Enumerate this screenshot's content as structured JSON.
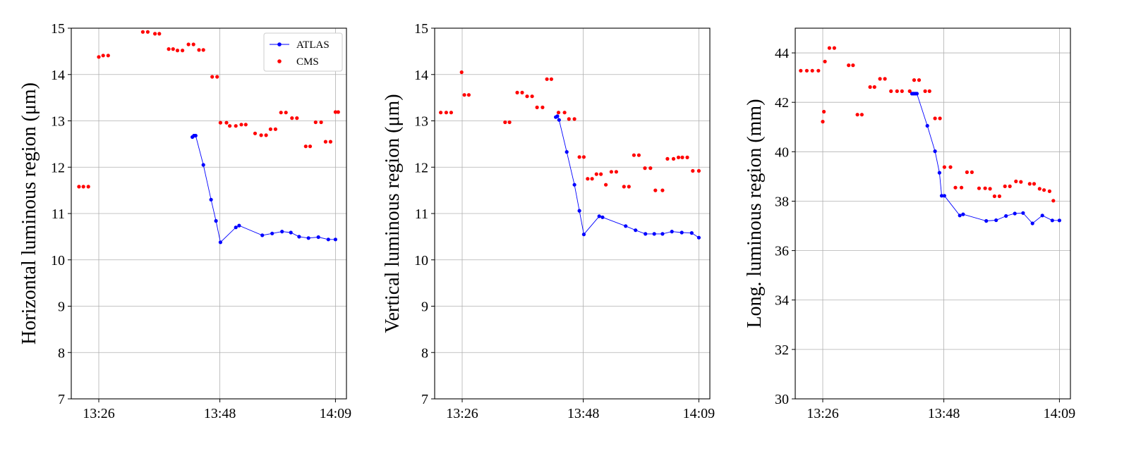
{
  "chart_data": [
    {
      "type": "scatter",
      "ylabel": "Horizontal luminous region (μm)",
      "ylim": [
        7,
        15
      ],
      "yticks": [
        "7",
        "8",
        "9",
        "10",
        "11",
        "12",
        "13",
        "14",
        "15"
      ],
      "xlim": [
        801,
        851
      ],
      "xticks": [
        {
          "v": 806,
          "label": "13:26"
        },
        {
          "v": 828,
          "label": "13:48"
        },
        {
          "v": 849,
          "label": "14:09"
        }
      ],
      "grid": true,
      "legend": {
        "placement": "top-right",
        "entries": [
          "ATLAS",
          "CMS"
        ]
      },
      "series": [
        {
          "name": "ATLAS",
          "style": "line-markers",
          "color": "#0000ff",
          "x": [
            823.0,
            823.3,
            823.6,
            825.0,
            826.4,
            827.3,
            828.1,
            830.9,
            831.5,
            835.7,
            837.5,
            839.3,
            840.9,
            842.4,
            844.1,
            845.9,
            847.7,
            849.0
          ],
          "y": [
            12.65,
            12.68,
            12.68,
            12.05,
            11.3,
            10.84,
            10.38,
            10.7,
            10.74,
            10.53,
            10.57,
            10.61,
            10.59,
            10.5,
            10.47,
            10.49,
            10.44,
            10.44
          ]
        },
        {
          "name": "CMS",
          "style": "markers",
          "color": "#ff0000",
          "x": [
            802.4,
            803.2,
            804.1,
            806.0,
            806.8,
            807.7,
            814.0,
            814.9,
            816.2,
            817.0,
            818.7,
            819.5,
            820.3,
            821.2,
            822.3,
            823.2,
            824.2,
            825.0,
            826.6,
            827.5,
            828.1,
            829.2,
            829.8,
            830.9,
            831.9,
            832.7,
            834.4,
            835.5,
            836.4,
            837.2,
            838.1,
            839.1,
            840.0,
            841.1,
            842.0,
            843.6,
            844.4,
            845.4,
            846.4,
            847.2,
            848.1,
            849.0,
            849.5
          ],
          "y": [
            11.58,
            11.58,
            11.58,
            14.38,
            14.41,
            14.41,
            14.92,
            14.92,
            14.88,
            14.88,
            14.55,
            14.55,
            14.52,
            14.52,
            14.65,
            14.65,
            14.53,
            14.53,
            13.95,
            13.95,
            12.96,
            12.96,
            12.89,
            12.89,
            12.92,
            12.92,
            12.73,
            12.69,
            12.69,
            12.82,
            12.82,
            13.18,
            13.18,
            13.06,
            13.06,
            12.45,
            12.45,
            12.97,
            12.97,
            12.55,
            12.55,
            13.19,
            13.19
          ]
        }
      ]
    },
    {
      "type": "scatter",
      "ylabel": "Vertical luminous region (μm)",
      "ylim": [
        7,
        15
      ],
      "yticks": [
        "7",
        "8",
        "9",
        "10",
        "11",
        "12",
        "13",
        "14",
        "15"
      ],
      "xlim": [
        801,
        851
      ],
      "xticks": [
        {
          "v": 806,
          "label": "13:26"
        },
        {
          "v": 828,
          "label": "13:48"
        },
        {
          "v": 849,
          "label": "14:09"
        }
      ],
      "grid": true,
      "series": [
        {
          "name": "ATLAS",
          "style": "line-markers",
          "color": "#0000ff",
          "x": [
            823.0,
            823.3,
            823.6,
            825.0,
            826.4,
            827.3,
            828.1,
            830.9,
            831.5,
            835.7,
            837.5,
            839.3,
            840.9,
            842.4,
            844.1,
            845.9,
            847.7,
            849.0
          ],
          "y": [
            13.08,
            13.1,
            13.02,
            12.33,
            11.62,
            11.06,
            10.55,
            10.94,
            10.92,
            10.73,
            10.64,
            10.56,
            10.56,
            10.56,
            10.61,
            10.59,
            10.58,
            10.48
          ]
        },
        {
          "name": "CMS",
          "style": "markers",
          "color": "#ff0000",
          "x": [
            802.1,
            803.1,
            804.0,
            805.9,
            806.4,
            807.2,
            813.8,
            814.6,
            816.0,
            816.9,
            817.8,
            818.7,
            819.6,
            820.6,
            821.4,
            822.2,
            823.5,
            824.6,
            825.4,
            826.4,
            827.3,
            828.1,
            828.8,
            829.6,
            830.4,
            831.2,
            832.1,
            833.1,
            834.0,
            835.4,
            836.3,
            837.2,
            838.1,
            839.2,
            840.2,
            841.1,
            842.4,
            843.3,
            844.4,
            845.3,
            846.0,
            846.9,
            847.9,
            849.0
          ],
          "y": [
            13.18,
            13.18,
            13.18,
            14.05,
            13.56,
            13.56,
            12.97,
            12.97,
            13.61,
            13.61,
            13.53,
            13.53,
            13.29,
            13.29,
            13.9,
            13.9,
            13.18,
            13.18,
            13.04,
            13.04,
            12.22,
            12.22,
            11.75,
            11.75,
            11.85,
            11.85,
            11.62,
            11.9,
            11.9,
            11.58,
            11.58,
            12.26,
            12.26,
            11.98,
            11.98,
            11.5,
            11.5,
            12.18,
            12.18,
            12.21,
            12.21,
            12.21,
            11.92,
            11.92
          ]
        }
      ]
    },
    {
      "type": "scatter",
      "ylabel": "Long. luminous region (mm)",
      "ylim": [
        30,
        45
      ],
      "yticks": [
        "30",
        "32",
        "34",
        "36",
        "38",
        "40",
        "42",
        "44"
      ],
      "xlim": [
        801,
        851
      ],
      "xticks": [
        {
          "v": 806,
          "label": "13:26"
        },
        {
          "v": 828,
          "label": "13:48"
        },
        {
          "v": 849,
          "label": "14:09"
        }
      ],
      "grid": true,
      "series": [
        {
          "name": "ATLAS",
          "style": "line-markers",
          "color": "#0000ff",
          "x": [
            822.2,
            822.5,
            822.8,
            823.1,
            825.0,
            826.4,
            827.2,
            827.6,
            828.1,
            830.9,
            831.5,
            835.7,
            837.5,
            839.3,
            840.9,
            842.4,
            844.1,
            845.9,
            847.7,
            849.0
          ],
          "y": [
            42.35,
            42.35,
            42.35,
            42.35,
            41.05,
            40.02,
            39.15,
            38.22,
            38.22,
            37.42,
            37.47,
            37.2,
            37.23,
            37.4,
            37.5,
            37.52,
            37.1,
            37.42,
            37.22,
            37.22
          ]
        },
        {
          "name": "CMS",
          "style": "markers",
          "color": "#ff0000",
          "x": [
            802.0,
            803.1,
            804.1,
            805.2,
            806.0,
            806.2,
            806.4,
            807.2,
            808.1,
            810.7,
            811.5,
            812.3,
            813.1,
            814.6,
            815.4,
            816.4,
            817.3,
            818.4,
            819.5,
            820.4,
            821.8,
            822.6,
            823.5,
            824.6,
            825.4,
            826.4,
            827.3,
            828.1,
            829.2,
            830.1,
            831.2,
            832.2,
            833.1,
            834.4,
            835.5,
            836.4,
            837.2,
            838.1,
            839.1,
            840.0,
            841.1,
            842.0,
            843.6,
            844.4,
            845.4,
            846.2,
            847.2,
            847.9
          ],
          "y": [
            43.28,
            43.28,
            43.28,
            43.28,
            41.22,
            41.62,
            43.65,
            44.2,
            44.2,
            43.5,
            43.5,
            41.5,
            41.5,
            42.62,
            42.62,
            42.95,
            42.95,
            42.45,
            42.45,
            42.45,
            42.45,
            42.9,
            42.9,
            42.45,
            42.45,
            41.35,
            41.35,
            39.38,
            39.38,
            38.55,
            38.55,
            39.17,
            39.17,
            38.52,
            38.52,
            38.5,
            38.2,
            38.2,
            38.6,
            38.6,
            38.8,
            38.78,
            38.7,
            38.7,
            38.5,
            38.45,
            38.4,
            38.02
          ]
        }
      ]
    }
  ]
}
